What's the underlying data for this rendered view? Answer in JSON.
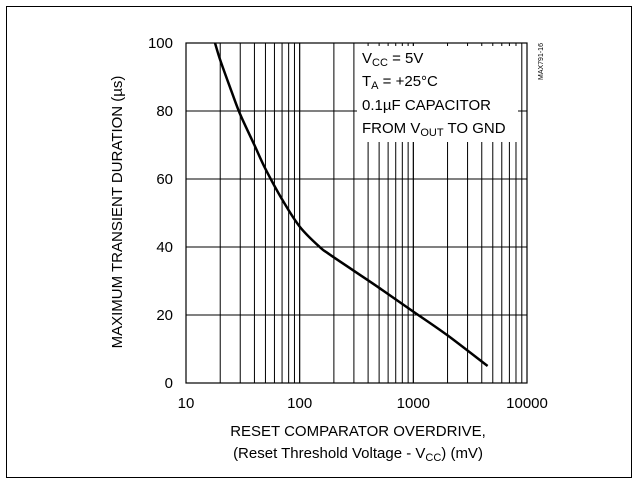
{
  "chart_data": {
    "type": "line",
    "title": "",
    "xlabel_line1": "RESET COMPARATOR OVERDRIVE,",
    "xlabel_line2_pre": "(Reset Threshold Voltage - V",
    "xlabel_line2_sub": "CC",
    "xlabel_line2_post": ") (mV)",
    "ylabel": "MAXIMUM TRANSIENT DURATION (µs)",
    "x_scale": "log",
    "xlim": [
      10,
      10000
    ],
    "ylim": [
      0,
      100
    ],
    "x_ticks": [
      10,
      100,
      1000,
      10000
    ],
    "x_tick_labels": [
      "10",
      "100",
      "1000",
      "10000"
    ],
    "y_ticks": [
      0,
      20,
      40,
      60,
      80,
      100
    ],
    "y_tick_labels": [
      "0",
      "20",
      "40",
      "60",
      "80",
      "100"
    ],
    "grid": true,
    "series": [
      {
        "x": [
          18,
          20,
          25,
          30,
          40,
          50,
          70,
          100,
          150,
          180,
          300,
          500,
          1000,
          2000,
          4500
        ],
        "y": [
          100,
          95,
          86,
          79,
          70,
          63,
          54,
          46,
          40,
          38,
          33,
          28,
          21,
          14,
          5
        ]
      }
    ],
    "annotations": {
      "line1_pre": "V",
      "line1_sub": "CC",
      "line1_post": " = 5V",
      "line2_pre": "T",
      "line2_sub": "A",
      "line2_post": " = +25°C",
      "line3": "0.1µF CAPACITOR",
      "line4_pre": "FROM V",
      "line4_sub": "OUT",
      "line4_post": " TO GND"
    },
    "part_id": "MAX791-16"
  }
}
